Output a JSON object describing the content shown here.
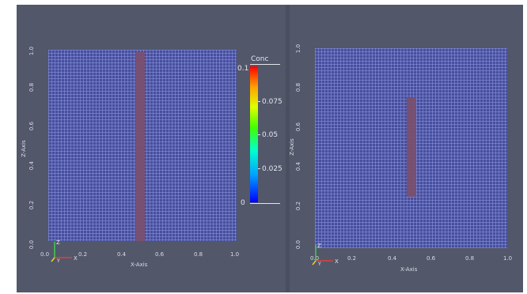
{
  "views": [
    {
      "x_axis_title": "X-Axis",
      "z_axis_title": "Z-Axis",
      "x_ticks": [
        "0.0",
        "0.2",
        "0.4",
        "0.6",
        "0.8",
        "1.0"
      ],
      "z_ticks": [
        "0.0",
        "0.2",
        "0.4",
        "0.6",
        "0.8",
        "1.0"
      ],
      "triad": {
        "x_label": "X",
        "y_label": "Y",
        "z_label": "Z"
      }
    },
    {
      "x_axis_title": "X-Axis",
      "z_axis_title": "Z-Axis",
      "x_ticks": [
        "0.0",
        "0.2",
        "0.4",
        "0.6",
        "0.8",
        "1.0"
      ],
      "z_ticks": [
        "0.0",
        "0.2",
        "0.4",
        "0.6",
        "0.8",
        "1.0"
      ],
      "triad": {
        "x_label": "X",
        "y_label": "Y",
        "z_label": "Z"
      }
    }
  ],
  "colorbar": {
    "title": "Conc",
    "labels": [
      "0.1",
      "0.075",
      "0.05",
      "0.025",
      "0"
    ],
    "colormap": [
      "#0000ff",
      "#00a0ff",
      "#00ffd0",
      "#40ff00",
      "#e0ff00",
      "#ffa000",
      "#ff0000"
    ]
  },
  "colors": {
    "background": "#52576a",
    "mesh": "#474f9c",
    "plume": "#7a4f6f",
    "text": "#dcdde6"
  }
}
